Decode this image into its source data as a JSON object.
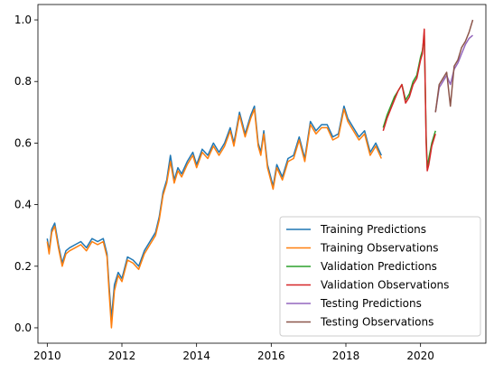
{
  "chart_data": {
    "type": "line",
    "title": "",
    "xlabel": "",
    "ylabel": "",
    "xlim": [
      2009.75,
      2021.75
    ],
    "ylim": [
      -0.05,
      1.05
    ],
    "grid": false,
    "legend_position": "lower-right",
    "x_ticks": [
      2010,
      2012,
      2014,
      2016,
      2018,
      2020
    ],
    "x_tick_labels": [
      "2010",
      "2012",
      "2014",
      "2016",
      "2018",
      "2020"
    ],
    "y_ticks": [
      0.0,
      0.2,
      0.4,
      0.6,
      0.8,
      1.0
    ],
    "y_tick_labels": [
      "0.0",
      "0.2",
      "0.4",
      "0.6",
      "0.8",
      "1.0"
    ],
    "series": [
      {
        "name": "Training Predictions",
        "color": "#1f77b4",
        "x": [
          2010.0,
          2010.05,
          2010.12,
          2010.2,
          2010.3,
          2010.4,
          2010.5,
          2010.6,
          2010.75,
          2010.9,
          2011.05,
          2011.2,
          2011.35,
          2011.5,
          2011.6,
          2011.65,
          2011.72,
          2011.8,
          2011.9,
          2012.0,
          2012.15,
          2012.3,
          2012.45,
          2012.6,
          2012.75,
          2012.9,
          2013.0,
          2013.1,
          2013.2,
          2013.3,
          2013.4,
          2013.5,
          2013.6,
          2013.75,
          2013.9,
          2014.0,
          2014.15,
          2014.3,
          2014.45,
          2014.6,
          2014.75,
          2014.9,
          2015.0,
          2015.15,
          2015.3,
          2015.45,
          2015.55,
          2015.65,
          2015.72,
          2015.8,
          2015.9,
          2016.05,
          2016.15,
          2016.3,
          2016.45,
          2016.6,
          2016.75,
          2016.9,
          2017.05,
          2017.2,
          2017.35,
          2017.5,
          2017.65,
          2017.8,
          2017.95,
          2018.05,
          2018.2,
          2018.35,
          2018.5,
          2018.65,
          2018.8,
          2018.95
        ],
        "values": [
          0.29,
          0.25,
          0.32,
          0.34,
          0.27,
          0.21,
          0.25,
          0.26,
          0.27,
          0.28,
          0.26,
          0.29,
          0.28,
          0.29,
          0.24,
          0.15,
          0.03,
          0.14,
          0.18,
          0.16,
          0.23,
          0.22,
          0.2,
          0.25,
          0.28,
          0.31,
          0.36,
          0.44,
          0.48,
          0.56,
          0.48,
          0.52,
          0.5,
          0.54,
          0.57,
          0.53,
          0.58,
          0.56,
          0.6,
          0.57,
          0.6,
          0.65,
          0.6,
          0.7,
          0.63,
          0.69,
          0.72,
          0.6,
          0.57,
          0.64,
          0.53,
          0.46,
          0.53,
          0.49,
          0.55,
          0.56,
          0.62,
          0.55,
          0.67,
          0.64,
          0.66,
          0.66,
          0.62,
          0.63,
          0.72,
          0.68,
          0.65,
          0.62,
          0.64,
          0.57,
          0.6,
          0.56
        ]
      },
      {
        "name": "Training Observations",
        "color": "#ff7f0e",
        "x": [
          2010.0,
          2010.05,
          2010.12,
          2010.2,
          2010.3,
          2010.4,
          2010.5,
          2010.6,
          2010.75,
          2010.9,
          2011.05,
          2011.2,
          2011.35,
          2011.5,
          2011.6,
          2011.65,
          2011.72,
          2011.8,
          2011.9,
          2012.0,
          2012.15,
          2012.3,
          2012.45,
          2012.6,
          2012.75,
          2012.9,
          2013.0,
          2013.1,
          2013.2,
          2013.3,
          2013.4,
          2013.5,
          2013.6,
          2013.75,
          2013.9,
          2014.0,
          2014.15,
          2014.3,
          2014.45,
          2014.6,
          2014.75,
          2014.9,
          2015.0,
          2015.15,
          2015.3,
          2015.45,
          2015.55,
          2015.65,
          2015.72,
          2015.8,
          2015.9,
          2016.05,
          2016.15,
          2016.3,
          2016.45,
          2016.6,
          2016.75,
          2016.9,
          2017.05,
          2017.2,
          2017.35,
          2017.5,
          2017.65,
          2017.8,
          2017.95,
          2018.05,
          2018.2,
          2018.35,
          2018.5,
          2018.65,
          2018.8,
          2018.95
        ],
        "values": [
          0.28,
          0.24,
          0.31,
          0.33,
          0.26,
          0.2,
          0.24,
          0.25,
          0.26,
          0.27,
          0.25,
          0.28,
          0.27,
          0.28,
          0.23,
          0.13,
          0.0,
          0.12,
          0.17,
          0.15,
          0.22,
          0.21,
          0.19,
          0.24,
          0.27,
          0.3,
          0.35,
          0.43,
          0.47,
          0.54,
          0.47,
          0.51,
          0.49,
          0.53,
          0.56,
          0.52,
          0.57,
          0.55,
          0.59,
          0.56,
          0.59,
          0.64,
          0.59,
          0.69,
          0.62,
          0.68,
          0.71,
          0.59,
          0.56,
          0.63,
          0.52,
          0.45,
          0.52,
          0.48,
          0.54,
          0.55,
          0.61,
          0.54,
          0.66,
          0.63,
          0.65,
          0.65,
          0.61,
          0.62,
          0.71,
          0.67,
          0.64,
          0.61,
          0.63,
          0.56,
          0.59,
          0.55
        ]
      },
      {
        "name": "Validation Predictions",
        "color": "#2ca02c",
        "x": [
          2019.0,
          2019.1,
          2019.2,
          2019.3,
          2019.4,
          2019.5,
          2019.6,
          2019.7,
          2019.8,
          2019.9,
          2020.0,
          2020.05,
          2020.1,
          2020.15,
          2020.18,
          2020.22,
          2020.3,
          2020.4
        ],
        "values": [
          0.65,
          0.69,
          0.72,
          0.75,
          0.77,
          0.79,
          0.74,
          0.76,
          0.8,
          0.82,
          0.88,
          0.9,
          0.95,
          0.62,
          0.52,
          0.55,
          0.6,
          0.64
        ]
      },
      {
        "name": "Validation Observations",
        "color": "#d62728",
        "x": [
          2019.0,
          2019.1,
          2019.2,
          2019.3,
          2019.4,
          2019.5,
          2019.6,
          2019.7,
          2019.8,
          2019.9,
          2020.0,
          2020.05,
          2020.1,
          2020.15,
          2020.18,
          2020.22,
          2020.3,
          2020.4
        ],
        "values": [
          0.64,
          0.68,
          0.71,
          0.74,
          0.77,
          0.79,
          0.73,
          0.75,
          0.79,
          0.81,
          0.87,
          0.89,
          0.97,
          0.6,
          0.51,
          0.53,
          0.59,
          0.63
        ]
      },
      {
        "name": "Testing Predictions",
        "color": "#9467bd",
        "x": [
          2020.4,
          2020.5,
          2020.6,
          2020.7,
          2020.8,
          2020.9,
          2021.0,
          2021.1,
          2021.2,
          2021.3,
          2021.4
        ],
        "values": [
          0.7,
          0.78,
          0.8,
          0.82,
          0.79,
          0.84,
          0.86,
          0.89,
          0.92,
          0.94,
          0.95
        ]
      },
      {
        "name": "Testing Observations",
        "color": "#8c564b",
        "x": [
          2020.4,
          2020.5,
          2020.6,
          2020.7,
          2020.8,
          2020.9,
          2021.0,
          2021.1,
          2021.2,
          2021.3,
          2021.4
        ],
        "values": [
          0.7,
          0.79,
          0.81,
          0.83,
          0.72,
          0.85,
          0.87,
          0.91,
          0.93,
          0.96,
          1.0
        ]
      }
    ]
  }
}
